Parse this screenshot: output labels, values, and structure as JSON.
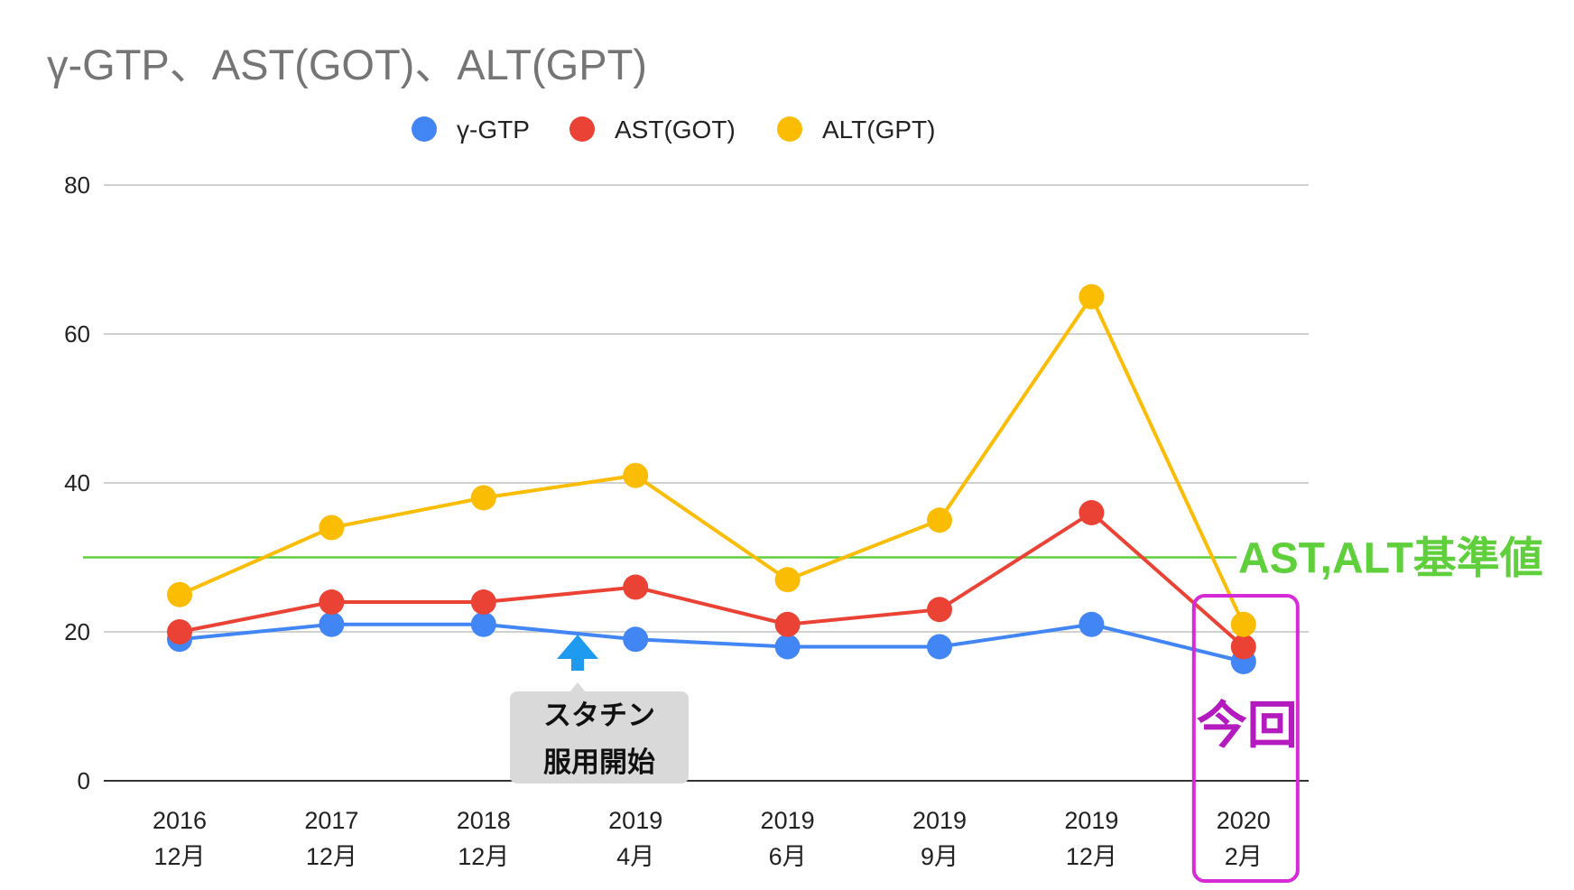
{
  "chart_data": {
    "type": "line",
    "title": "γ-GTP、AST(GOT)、ALT(GPT)",
    "categories": [
      [
        "2016",
        "12月"
      ],
      [
        "2017",
        "12月"
      ],
      [
        "2018",
        "12月"
      ],
      [
        "2019",
        "4月"
      ],
      [
        "2019",
        "6月"
      ],
      [
        "2019",
        "9月"
      ],
      [
        "2019",
        "12月"
      ],
      [
        "2020",
        "2月"
      ]
    ],
    "series": [
      {
        "name": "γ-GTP",
        "color": "#4285f4",
        "values": [
          19,
          21,
          21,
          19,
          18,
          18,
          21,
          16
        ]
      },
      {
        "name": "AST(GOT)",
        "color": "#ea4335",
        "values": [
          20,
          24,
          24,
          26,
          21,
          23,
          36,
          18
        ]
      },
      {
        "name": "ALT(GPT)",
        "color": "#fbbc04",
        "values": [
          25,
          34,
          38,
          41,
          27,
          35,
          65,
          21
        ]
      }
    ],
    "ylim": [
      0,
      80
    ],
    "yticks": [
      0,
      20,
      40,
      60,
      80
    ],
    "grid": true,
    "legend": "top-center",
    "reference_line": {
      "value": 30,
      "label": "AST,ALT基準値",
      "color": "#5fcf3c"
    },
    "annotations": {
      "statin": {
        "lines": [
          "スタチン",
          "服用開始"
        ],
        "at_between": [
          2,
          3
        ],
        "arrow_color": "#1e9bf0"
      },
      "current": {
        "label": "今回",
        "category_index": 7,
        "color": "#b31bbf",
        "border_color": "#d62ad6"
      }
    }
  }
}
